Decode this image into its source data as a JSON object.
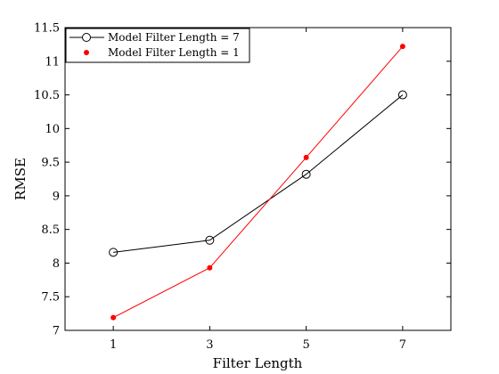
{
  "chart_data": {
    "type": "line",
    "xlabel": "Filter Length",
    "ylabel": "RMSE",
    "xlim": [
      0,
      8
    ],
    "ylim": [
      7,
      11.5
    ],
    "xticks": [
      1,
      3,
      5,
      7
    ],
    "xtick_labels": [
      "1",
      "3",
      "5",
      "7"
    ],
    "yticks": [
      7,
      7.5,
      8,
      8.5,
      9,
      9.5,
      10,
      10.5,
      11,
      11.5
    ],
    "ytick_labels": [
      "7",
      "7.5",
      "8",
      "8.5",
      "9",
      "9.5",
      "10",
      "10.5",
      "11",
      "11.5"
    ],
    "grid": false,
    "legend_position": "top-left",
    "x": [
      1,
      3,
      5,
      7
    ],
    "series": [
      {
        "name": "Model Filter Length = 7",
        "values": [
          8.16,
          8.34,
          9.32,
          10.5
        ],
        "color": "#000000",
        "marker": "open-circle"
      },
      {
        "name": "Model Filter Length = 1",
        "values": [
          7.19,
          7.93,
          9.57,
          11.22
        ],
        "color": "#ff0000",
        "marker": "filled-dot"
      }
    ]
  }
}
